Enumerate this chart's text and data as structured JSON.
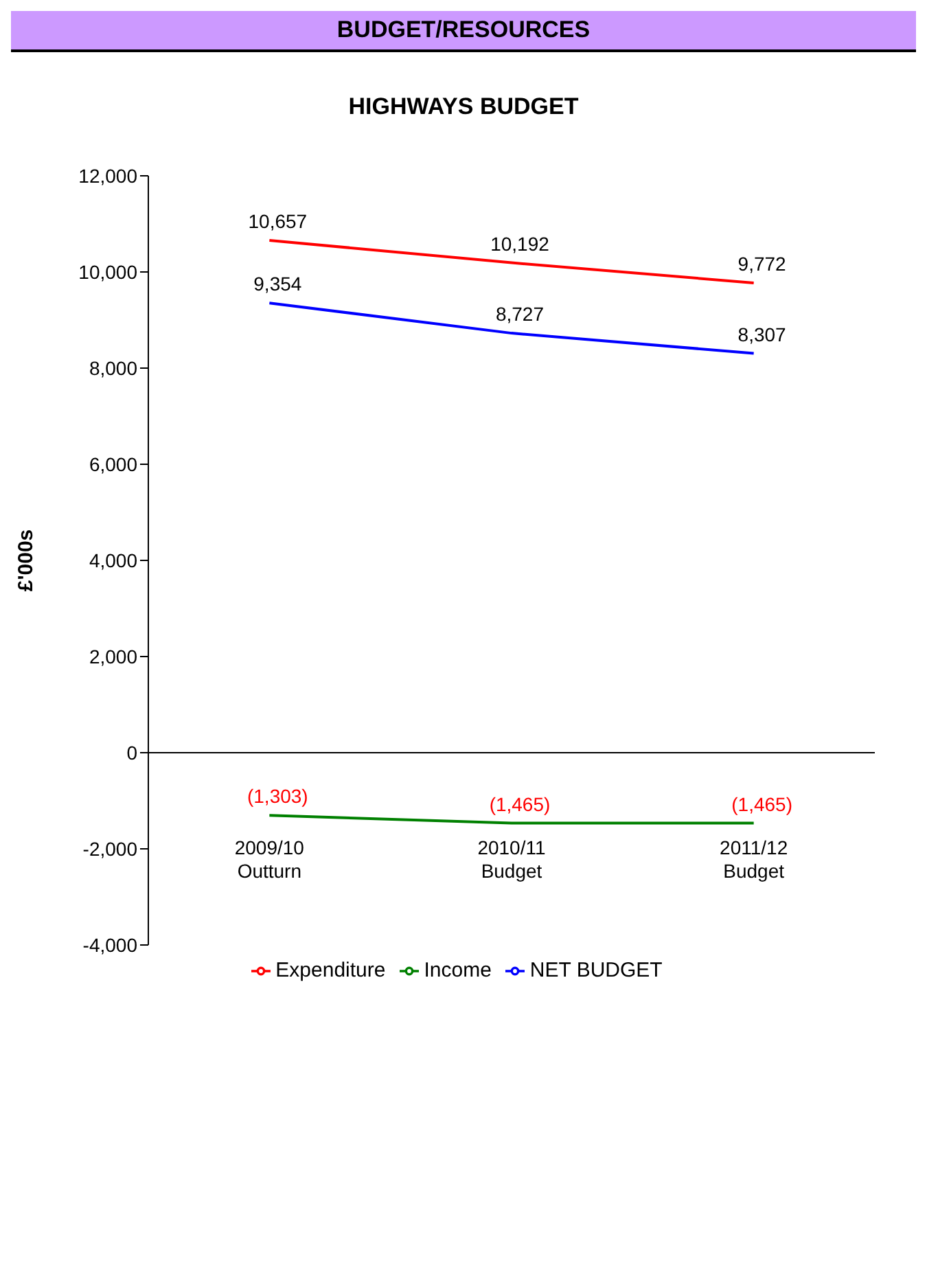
{
  "chart_data": {
    "type": "line",
    "title": "HIGHWAYS BUDGET",
    "ylabel": "£'000s",
    "annotations": [
      "BUDGET/RESOURCES"
    ],
    "categories": [
      "2009/10\nOutturn",
      "2010/11\nBudget",
      "2011/12\nBudget"
    ],
    "series": [
      {
        "name": "Expenditure",
        "color": "#ff0000",
        "values": [
          10657,
          10192,
          9772
        ],
        "value_labels": [
          "10,657",
          "10,192",
          "9,772"
        ]
      },
      {
        "name": "Income",
        "color": "#008000",
        "values": [
          -1303,
          -1465,
          -1465
        ],
        "value_labels": [
          "(1,303)",
          "(1,465)",
          "(1,465)"
        ]
      },
      {
        "name": "NET BUDGET",
        "color": "#0000ff",
        "values": [
          9354,
          8727,
          8307
        ],
        "value_labels": [
          "9,354",
          "8,727",
          "8,307"
        ]
      }
    ],
    "ylim": [
      -4000,
      12000
    ],
    "yticks": [
      {
        "value": -4000,
        "label": "-4,000"
      },
      {
        "value": -2000,
        "label": "-2,000"
      },
      0,
      {
        "value": 2000,
        "label": "2,000"
      },
      {
        "value": 4000,
        "label": "4,000"
      },
      {
        "value": 6000,
        "label": "6,000"
      },
      {
        "value": 8000,
        "label": "8,000"
      },
      {
        "value": 10000,
        "label": "10,000"
      },
      {
        "value": 12000,
        "label": "12,000"
      }
    ],
    "legend": "bottom",
    "marker": "none",
    "line_style": "solid"
  }
}
